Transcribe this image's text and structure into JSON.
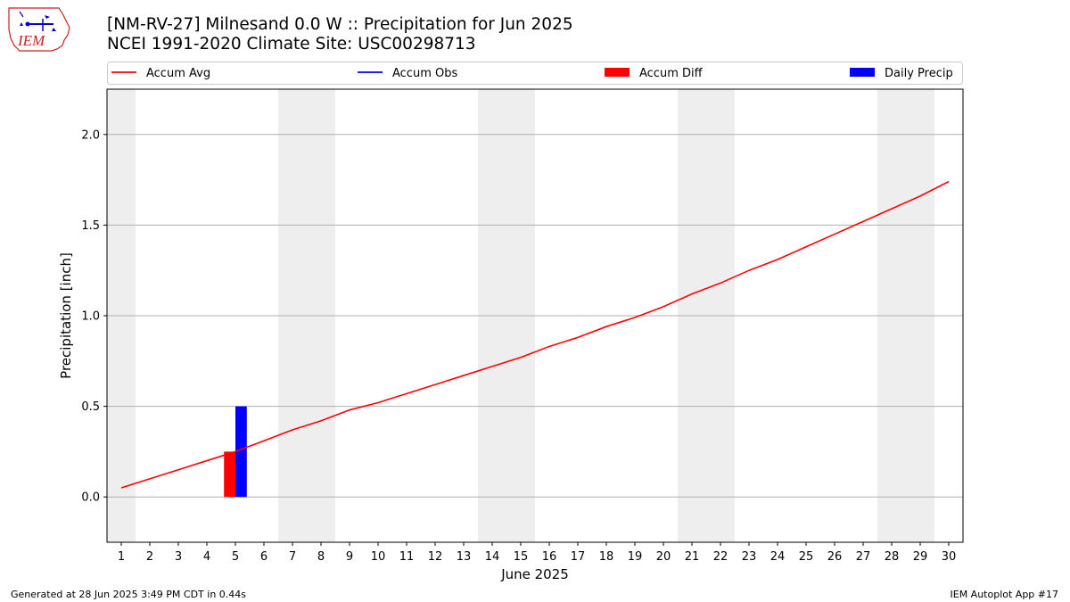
{
  "header": {
    "title_line1": "[NM-RV-27] Milnesand 0.0 W :: Precipitation for Jun 2025",
    "title_line2": "NCEI 1991-2020 Climate Site: USC00298713",
    "logo_text": "IEM"
  },
  "footer": {
    "left": "Generated at 28 Jun 2025 3:49 PM CDT in 0.44s",
    "right": "IEM Autoplot App #17"
  },
  "chart_data": {
    "type": "line",
    "title": "[NM-RV-27] Milnesand 0.0 W :: Precipitation for Jun 2025",
    "subtitle": "NCEI 1991-2020 Climate Site: USC00298713",
    "xlabel": "June 2025",
    "ylabel": "Precipitation [inch]",
    "xlim": [
      0.5,
      30.5
    ],
    "ylim": [
      -0.25,
      2.25
    ],
    "x_ticks": [
      1,
      2,
      3,
      4,
      5,
      6,
      7,
      8,
      9,
      10,
      11,
      12,
      13,
      14,
      15,
      16,
      17,
      18,
      19,
      20,
      21,
      22,
      23,
      24,
      25,
      26,
      27,
      28,
      29,
      30
    ],
    "y_ticks": [
      0.0,
      0.5,
      1.0,
      1.5,
      2.0
    ],
    "y_tick_labels": [
      "0.0",
      "0.5",
      "1.0",
      "1.5",
      "2.0"
    ],
    "grid": "horizontal",
    "legend_position": "top",
    "weekend_shading": [
      [
        0.5,
        1.5
      ],
      [
        6.5,
        8.5
      ],
      [
        13.5,
        15.5
      ],
      [
        20.5,
        22.5
      ],
      [
        27.5,
        29.5
      ]
    ],
    "shade_color": "#eeeeee",
    "series": [
      {
        "name": "Accum Avg",
        "kind": "line",
        "color": "#ff0000",
        "x": [
          1,
          2,
          3,
          4,
          5,
          6,
          7,
          8,
          9,
          10,
          11,
          12,
          13,
          14,
          15,
          16,
          17,
          18,
          19,
          20,
          21,
          22,
          23,
          24,
          25,
          26,
          27,
          28,
          29,
          30
        ],
        "values": [
          0.05,
          0.1,
          0.15,
          0.2,
          0.25,
          0.31,
          0.37,
          0.42,
          0.48,
          0.52,
          0.57,
          0.62,
          0.67,
          0.72,
          0.77,
          0.83,
          0.88,
          0.94,
          0.99,
          1.05,
          1.12,
          1.18,
          1.25,
          1.31,
          1.38,
          1.45,
          1.52,
          1.59,
          1.66,
          1.74
        ]
      },
      {
        "name": "Accum Obs",
        "kind": "line",
        "color": "#0000ff",
        "x": [],
        "values": []
      },
      {
        "name": "Accum Diff",
        "kind": "bar",
        "color": "#ff0000",
        "x": [
          5
        ],
        "values": [
          0.25
        ]
      },
      {
        "name": "Daily Precip",
        "kind": "bar",
        "color": "#0000ff",
        "x": [
          5
        ],
        "values": [
          0.5
        ]
      }
    ]
  }
}
